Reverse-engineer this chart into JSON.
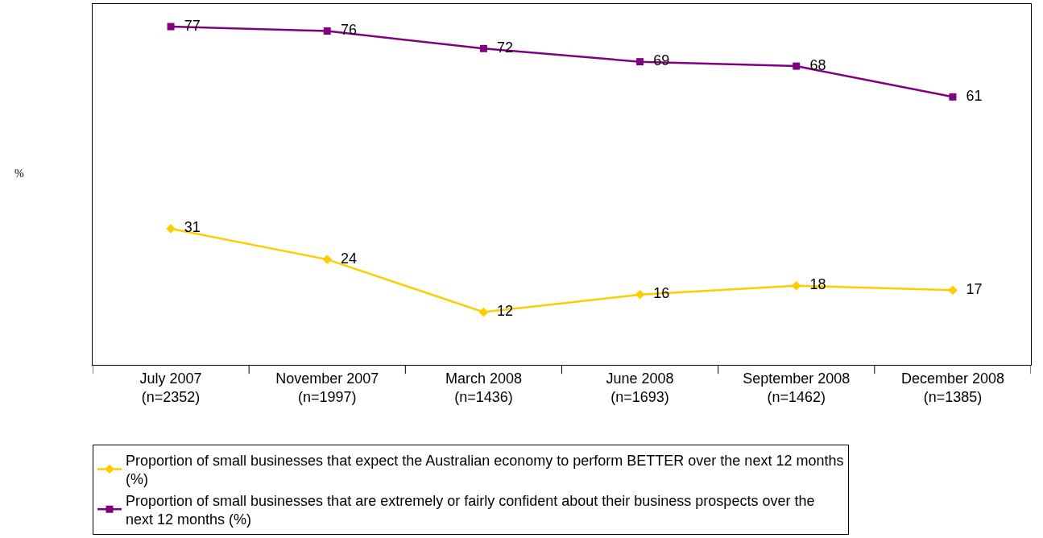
{
  "chart_data": {
    "type": "line",
    "categories": [
      "July 2007\n(n=2352)",
      "November 2007\n(n=1997)",
      "March 2008\n(n=1436)",
      "June 2008\n(n=1693)",
      "September 2008\n(n=1462)",
      "December 2008\n(n=1385)"
    ],
    "annotations": [
      "%"
    ],
    "series": [
      {
        "name": "Proportion of small businesses that expect the Australian economy to perform BETTER over the next 12 months (%)",
        "color": "#ffcc00",
        "marker": "diamond",
        "values": [
          31,
          24,
          12,
          16,
          18,
          17
        ]
      },
      {
        "name": "Proportion of small businesses that are extremely or fairly confident about their business prospects over the next 12 months (%)",
        "color": "#800080",
        "marker": "square",
        "values": [
          77,
          76,
          72,
          69,
          68,
          61
        ]
      }
    ],
    "data_labels": true,
    "grid": false,
    "legend": "bottom",
    "tick_labels": "x",
    "line_style": "solid"
  }
}
